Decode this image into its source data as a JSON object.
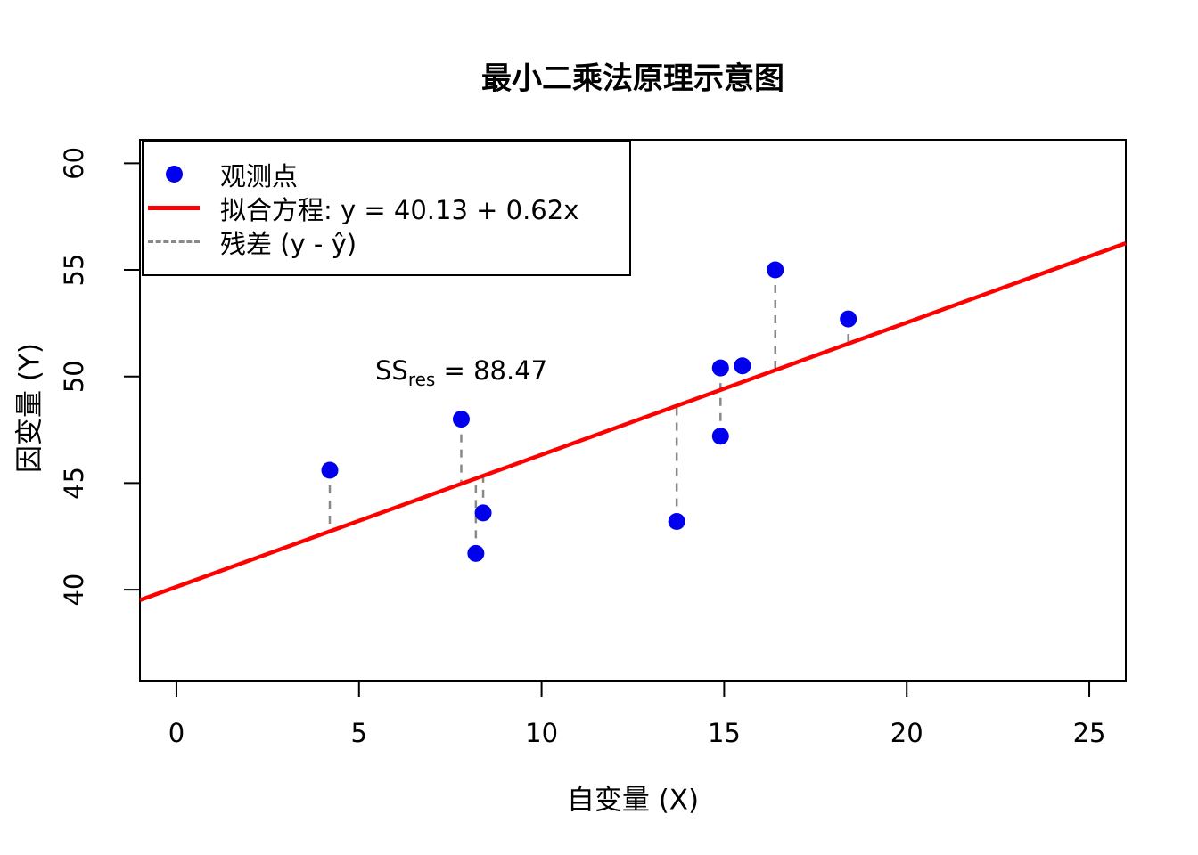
{
  "chart_data": {
    "type": "scatter",
    "title": "最小二乘法原理示意图",
    "xlabel": "自变量 (X)",
    "ylabel": "因变量 (Y)",
    "x_ticks": [
      0,
      5,
      10,
      15,
      20,
      25
    ],
    "y_ticks": [
      40,
      45,
      50,
      55,
      60
    ],
    "xlim": [
      -1.0,
      26.0
    ],
    "ylim": [
      35.7,
      61.1
    ],
    "grid": false,
    "points": [
      [
        4.2,
        45.6
      ],
      [
        7.8,
        48.0
      ],
      [
        8.2,
        41.7
      ],
      [
        8.4,
        43.6
      ],
      [
        13.7,
        43.2
      ],
      [
        14.9,
        50.4
      ],
      [
        14.9,
        47.2
      ],
      [
        15.5,
        50.5
      ],
      [
        16.4,
        55.0
      ],
      [
        18.4,
        52.7
      ]
    ],
    "fit": {
      "intercept": 40.13,
      "slope": 0.62
    },
    "annotation": {
      "prefix": "SS",
      "subscript": "res",
      "suffix": " = 88.47",
      "value": 88.47
    },
    "legend": {
      "position": "topleft",
      "entries": [
        {
          "label": "观测点",
          "marker": "point"
        },
        {
          "label": "拟合方程: y = 40.13 + 0.62x",
          "marker": "solid-line"
        },
        {
          "label": "残差 (y - ŷ)",
          "marker": "dashed-line"
        }
      ]
    },
    "colors": {
      "point": "#0000EE",
      "fit_line": "#FF0000",
      "residual": "#888888",
      "axis": "#000000"
    }
  }
}
